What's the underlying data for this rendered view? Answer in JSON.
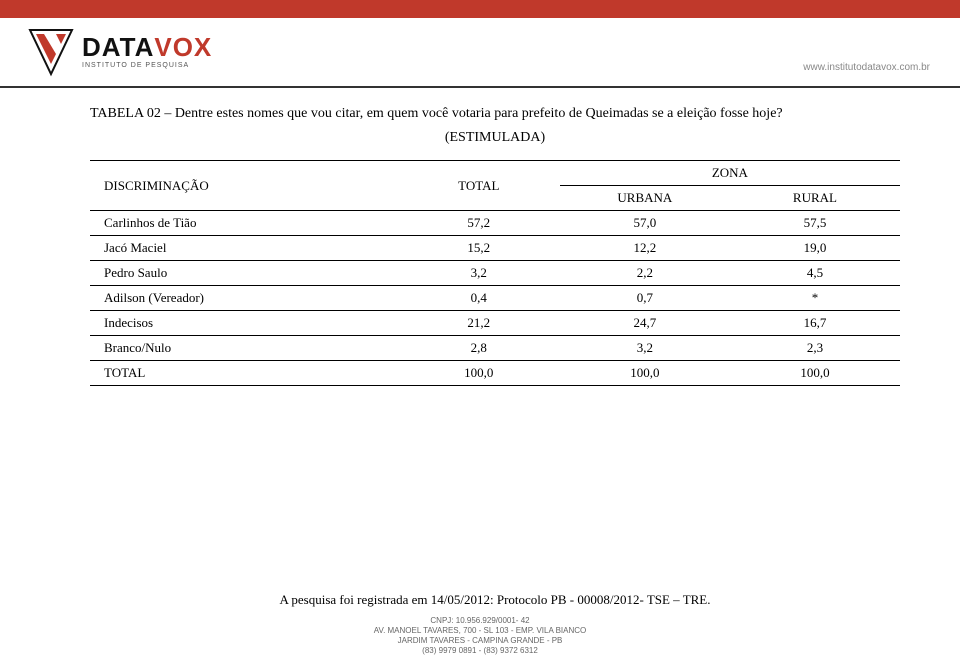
{
  "brand": {
    "name_black": "DATA",
    "name_red": "VOX",
    "tagline": "INSTITUTO DE PESQUISA",
    "url": "www.institutodatavox.com.br"
  },
  "title": "TABELA 02 – Dentre estes nomes que vou citar, em quem você votaria para prefeito de Queimadas se a eleição fosse hoje?",
  "subtitle": "(ESTIMULADA)",
  "table": {
    "header": {
      "disc": "DISCRIMINAÇÃO",
      "total": "TOTAL",
      "zona": "ZONA",
      "urbana": "URBANA",
      "rural": "RURAL"
    },
    "rows": [
      {
        "label": "Carlinhos de Tião",
        "total": "57,2",
        "urbana": "57,0",
        "rural": "57,5"
      },
      {
        "label": "Jacó Maciel",
        "total": "15,2",
        "urbana": "12,2",
        "rural": "19,0"
      },
      {
        "label": "Pedro Saulo",
        "total": "3,2",
        "urbana": "2,2",
        "rural": "4,5"
      },
      {
        "label": "Adilson (Vereador)",
        "total": "0,4",
        "urbana": "0,7",
        "rural": "*"
      },
      {
        "label": "Indecisos",
        "total": "21,2",
        "urbana": "24,7",
        "rural": "16,7"
      },
      {
        "label": "Branco/Nulo",
        "total": "2,8",
        "urbana": "3,2",
        "rural": "2,3"
      }
    ],
    "total_row": {
      "label": "TOTAL",
      "total": "100,0",
      "urbana": "100,0",
      "rural": "100,0"
    },
    "col_widths": [
      "38%",
      "20%",
      "21%",
      "21%"
    ]
  },
  "footnote": "A pesquisa foi registrada em 14/05/2012: Protocolo PB - 00008/2012- TSE – TRE.",
  "footer": {
    "l1": "CNPJ: 10.956.929/0001- 42",
    "l2": "AV. MANOEL TAVARES, 700 - SL 103 - EMP. VILA BIANCO",
    "l3": "JARDIM TAVARES - CAMPINA GRANDE - PB",
    "l4": "(83) 9979 0891 - (83) 9372 6312"
  },
  "colors": {
    "accent": "#c0392b",
    "text": "#000000",
    "muted": "#888888",
    "footer_text": "#666666"
  }
}
